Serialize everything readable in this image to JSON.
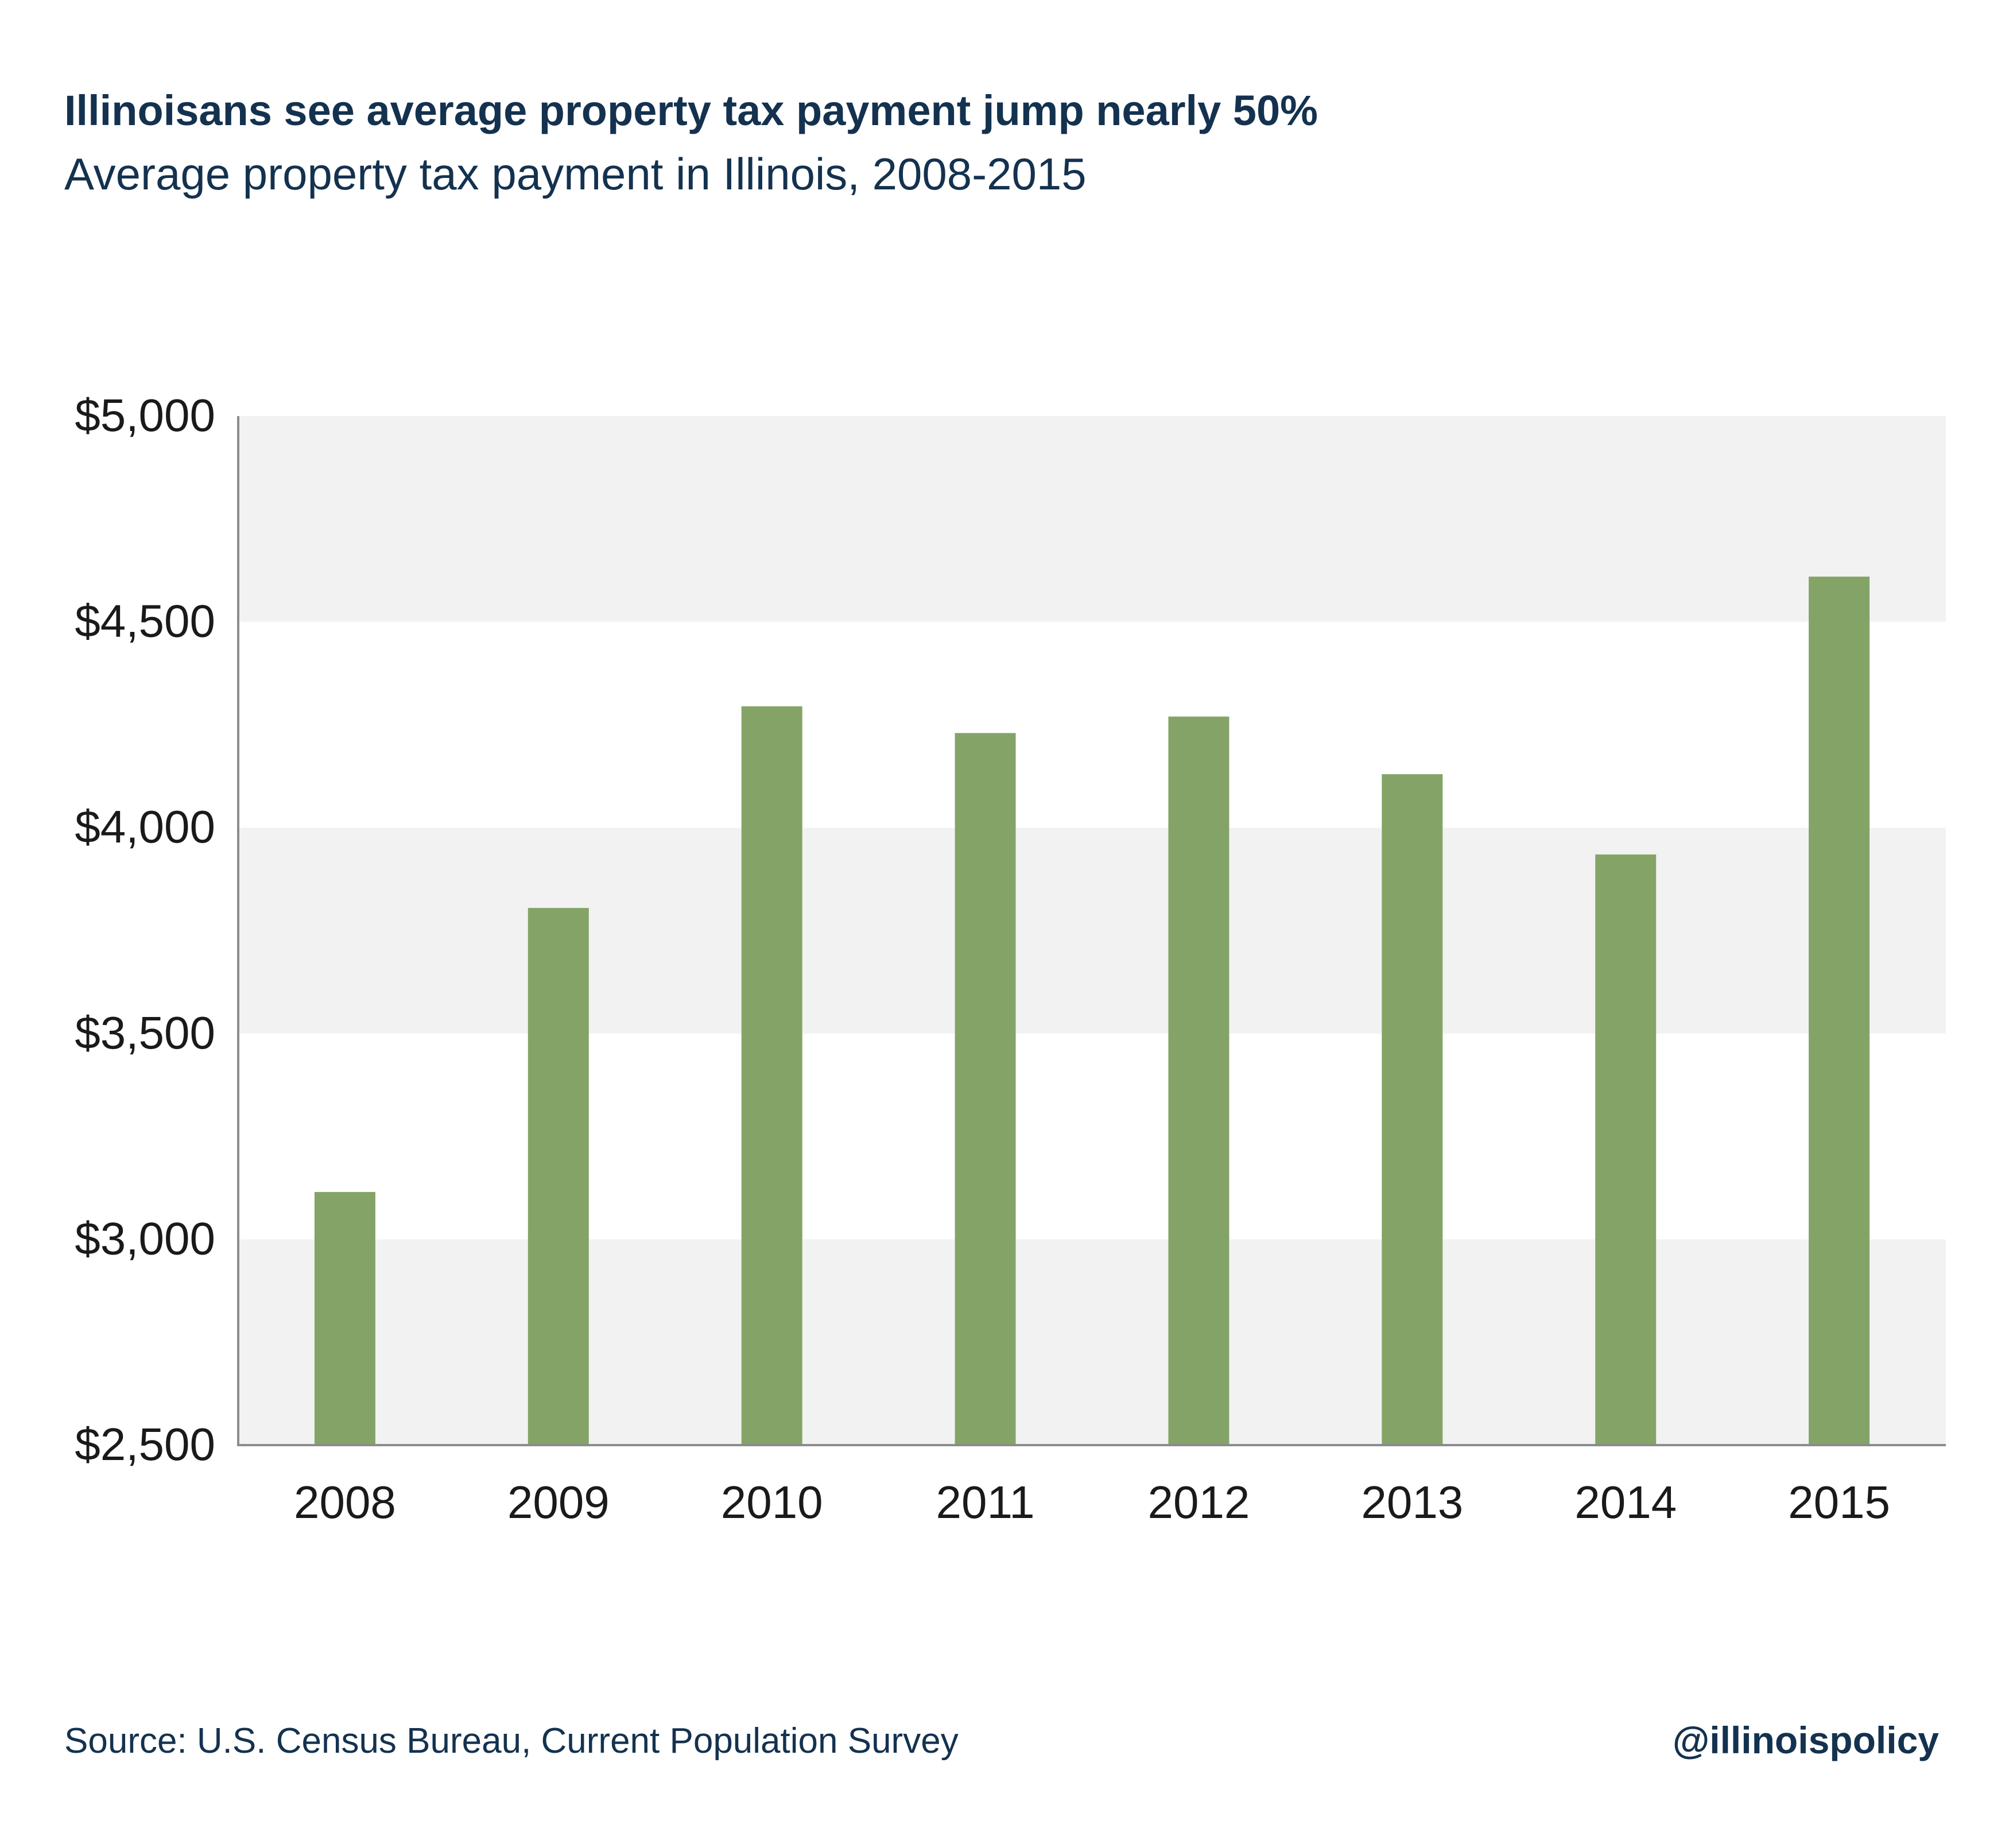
{
  "header": {
    "title": "Illinoisans see average property tax payment jump nearly 50%",
    "subtitle": "Average property tax payment in Illinois, 2008-2015"
  },
  "footer": {
    "source": "Source:  U.S. Census Bureau, Current Population Survey",
    "handle": "@illinoispolicy"
  },
  "colors": {
    "bar": "#84a467",
    "band": "#f2f2f2",
    "axis": "#8c8c8c",
    "text_dark": "#14324f",
    "tick_text": "#1a1a1a"
  },
  "chart_data": {
    "type": "bar",
    "title": "Illinoisans see average property tax payment jump nearly 50%",
    "subtitle": "Average property tax payment in Illinois, 2008-2015",
    "xlabel": "",
    "ylabel": "",
    "categories": [
      "2008",
      "2009",
      "2010",
      "2011",
      "2012",
      "2013",
      "2014",
      "2015"
    ],
    "values": [
      3115,
      3805,
      4295,
      4230,
      4270,
      4130,
      3935,
      4610
    ],
    "ylim": [
      2500,
      5000
    ],
    "yticks": [
      2500,
      3000,
      3500,
      4000,
      4500,
      5000
    ],
    "ytick_labels": [
      "$2,500",
      "$3,000",
      "$3,500",
      "$4,000",
      "$4,500",
      "$5,000"
    ],
    "grid": "alternating bands",
    "legend": "none"
  }
}
